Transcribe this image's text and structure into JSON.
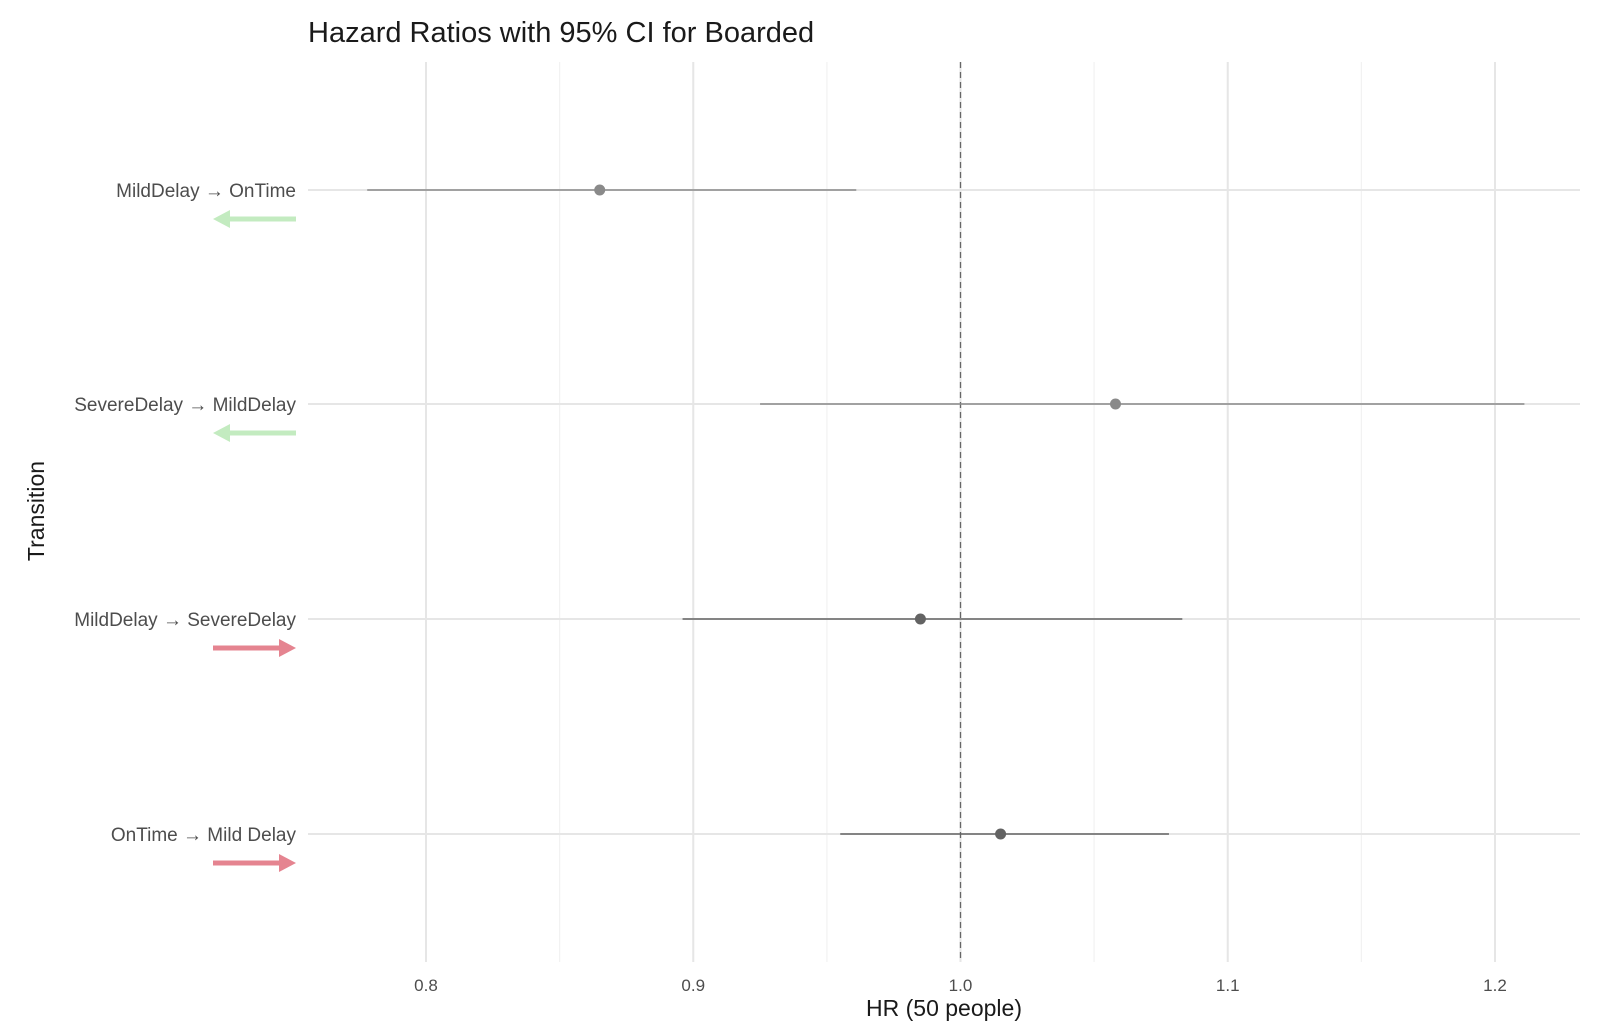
{
  "chart_data": {
    "type": "forest",
    "title": "Hazard Ratios with 95% CI for Boarded",
    "xlabel": "HR (50 people)",
    "ylabel": "Transition",
    "xlim": [
      0.756,
      1.232
    ],
    "xticks": [
      "0.8",
      "0.9",
      "1.0",
      "1.1",
      "1.2"
    ],
    "xtick_values": [
      0.8,
      0.9,
      1.0,
      1.1,
      1.2
    ],
    "reference_line": 1.0,
    "grid": true,
    "rows": [
      {
        "label": "MildDelay → OnTime",
        "hr": 0.865,
        "lower": 0.778,
        "upper": 0.961,
        "direction": "left",
        "arrow_color": "#c3ebc0",
        "point_color": "#8a8a8a"
      },
      {
        "label": "SevereDelay → MildDelay",
        "hr": 1.058,
        "lower": 0.925,
        "upper": 1.211,
        "direction": "left",
        "arrow_color": "#c3ebc0",
        "point_color": "#8a8a8a"
      },
      {
        "label": "MildDelay → SevereDelay",
        "hr": 0.985,
        "lower": 0.896,
        "upper": 1.083,
        "direction": "right",
        "arrow_color": "#e58490",
        "point_color": "#636363"
      },
      {
        "label": "OnTime → Mild Delay",
        "hr": 1.015,
        "lower": 0.955,
        "upper": 1.078,
        "direction": "right",
        "arrow_color": "#e58490",
        "point_color": "#636363"
      }
    ]
  }
}
